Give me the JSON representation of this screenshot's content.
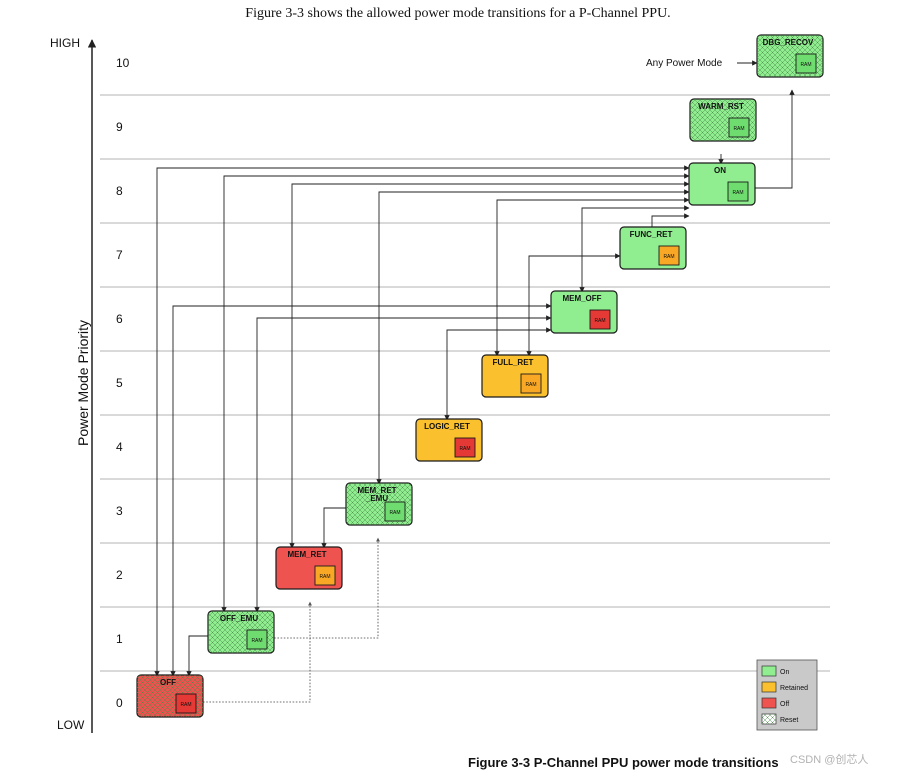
{
  "caption_top": "Figure 3-3 shows the allowed power mode transitions for a P-Channel PPU.",
  "caption_bottom": "Figure 3-3  P-Channel PPU power mode transitions",
  "watermark": "CSDN @创芯人",
  "axis": {
    "title": "Power Mode Priority",
    "high_label": "HIGH",
    "low_label": "LOW",
    "levels": [
      "0",
      "1",
      "2",
      "3",
      "4",
      "5",
      "6",
      "7",
      "8",
      "9",
      "10"
    ]
  },
  "any_mode_label": "Any Power Mode",
  "ram_text": "RAM",
  "colors": {
    "on": "#90ee90",
    "retained": "#fbc02d",
    "off": "#ef5350",
    "on_ram": "#6fdc6f",
    "retained_ram": "#f9a825",
    "off_ram": "#e53935"
  },
  "states": [
    {
      "label": "OFF",
      "level": 0,
      "fill": "off",
      "ram": "off",
      "hatch": true
    },
    {
      "label": "OFF_EMU",
      "level": 1,
      "fill": "on",
      "ram": "on",
      "hatch": true
    },
    {
      "label": "MEM_RET",
      "level": 2,
      "fill": "off",
      "ram": "retained",
      "hatch": false
    },
    {
      "label": "MEM_RET\n_EMU",
      "level": 3,
      "fill": "on",
      "ram": "on",
      "hatch": true
    },
    {
      "label": "LOGIC_RET",
      "level": 4,
      "fill": "retained",
      "ram": "off",
      "hatch": false
    },
    {
      "label": "FULL_RET",
      "level": 5,
      "fill": "retained",
      "ram": "retained",
      "hatch": false
    },
    {
      "label": "MEM_OFF",
      "level": 6,
      "fill": "on",
      "ram": "off",
      "hatch": false
    },
    {
      "label": "FUNC_RET",
      "level": 7,
      "fill": "on",
      "ram": "retained",
      "hatch": false
    },
    {
      "label": "ON",
      "level": 8,
      "fill": "on",
      "ram": "on",
      "hatch": false
    },
    {
      "label": "WARM_RST",
      "level": 9,
      "fill": "on",
      "ram": "on",
      "hatch": true
    },
    {
      "label": "DBG_RECOV",
      "level": 10,
      "fill": "on",
      "ram": "on",
      "hatch": true
    }
  ],
  "legend": [
    {
      "label": "On",
      "color": "on"
    },
    {
      "label": "Retained",
      "color": "retained"
    },
    {
      "label": "Off",
      "color": "off"
    },
    {
      "label": "Reset",
      "color": "reset"
    }
  ]
}
